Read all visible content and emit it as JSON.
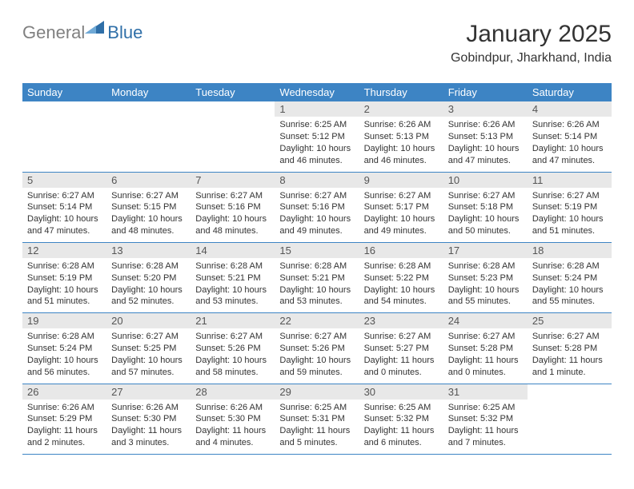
{
  "brand": {
    "text1": "General",
    "text2": "Blue"
  },
  "header": {
    "month_title": "January 2025",
    "location": "Gobindpur, Jharkhand, India"
  },
  "colors": {
    "header_bg": "#3d84c4",
    "header_text": "#ffffff",
    "daynum_bg": "#e8e8e8",
    "daynum_text": "#555555",
    "body_text": "#333333",
    "rule": "#3d84c4",
    "logo_gray": "#808080",
    "logo_blue": "#2f6fa8",
    "page_bg": "#ffffff"
  },
  "typography": {
    "title_fontsize": 30,
    "location_fontsize": 16,
    "dayheader_fontsize": 13,
    "daynum_fontsize": 13,
    "body_fontsize": 11
  },
  "day_headers": [
    "Sunday",
    "Monday",
    "Tuesday",
    "Wednesday",
    "Thursday",
    "Friday",
    "Saturday"
  ],
  "weeks": [
    [
      {
        "n": "",
        "sr": "",
        "ss": "",
        "dl": ""
      },
      {
        "n": "",
        "sr": "",
        "ss": "",
        "dl": ""
      },
      {
        "n": "",
        "sr": "",
        "ss": "",
        "dl": ""
      },
      {
        "n": "1",
        "sr": "Sunrise: 6:25 AM",
        "ss": "Sunset: 5:12 PM",
        "dl": "Daylight: 10 hours and 46 minutes."
      },
      {
        "n": "2",
        "sr": "Sunrise: 6:26 AM",
        "ss": "Sunset: 5:13 PM",
        "dl": "Daylight: 10 hours and 46 minutes."
      },
      {
        "n": "3",
        "sr": "Sunrise: 6:26 AM",
        "ss": "Sunset: 5:13 PM",
        "dl": "Daylight: 10 hours and 47 minutes."
      },
      {
        "n": "4",
        "sr": "Sunrise: 6:26 AM",
        "ss": "Sunset: 5:14 PM",
        "dl": "Daylight: 10 hours and 47 minutes."
      }
    ],
    [
      {
        "n": "5",
        "sr": "Sunrise: 6:27 AM",
        "ss": "Sunset: 5:14 PM",
        "dl": "Daylight: 10 hours and 47 minutes."
      },
      {
        "n": "6",
        "sr": "Sunrise: 6:27 AM",
        "ss": "Sunset: 5:15 PM",
        "dl": "Daylight: 10 hours and 48 minutes."
      },
      {
        "n": "7",
        "sr": "Sunrise: 6:27 AM",
        "ss": "Sunset: 5:16 PM",
        "dl": "Daylight: 10 hours and 48 minutes."
      },
      {
        "n": "8",
        "sr": "Sunrise: 6:27 AM",
        "ss": "Sunset: 5:16 PM",
        "dl": "Daylight: 10 hours and 49 minutes."
      },
      {
        "n": "9",
        "sr": "Sunrise: 6:27 AM",
        "ss": "Sunset: 5:17 PM",
        "dl": "Daylight: 10 hours and 49 minutes."
      },
      {
        "n": "10",
        "sr": "Sunrise: 6:27 AM",
        "ss": "Sunset: 5:18 PM",
        "dl": "Daylight: 10 hours and 50 minutes."
      },
      {
        "n": "11",
        "sr": "Sunrise: 6:27 AM",
        "ss": "Sunset: 5:19 PM",
        "dl": "Daylight: 10 hours and 51 minutes."
      }
    ],
    [
      {
        "n": "12",
        "sr": "Sunrise: 6:28 AM",
        "ss": "Sunset: 5:19 PM",
        "dl": "Daylight: 10 hours and 51 minutes."
      },
      {
        "n": "13",
        "sr": "Sunrise: 6:28 AM",
        "ss": "Sunset: 5:20 PM",
        "dl": "Daylight: 10 hours and 52 minutes."
      },
      {
        "n": "14",
        "sr": "Sunrise: 6:28 AM",
        "ss": "Sunset: 5:21 PM",
        "dl": "Daylight: 10 hours and 53 minutes."
      },
      {
        "n": "15",
        "sr": "Sunrise: 6:28 AM",
        "ss": "Sunset: 5:21 PM",
        "dl": "Daylight: 10 hours and 53 minutes."
      },
      {
        "n": "16",
        "sr": "Sunrise: 6:28 AM",
        "ss": "Sunset: 5:22 PM",
        "dl": "Daylight: 10 hours and 54 minutes."
      },
      {
        "n": "17",
        "sr": "Sunrise: 6:28 AM",
        "ss": "Sunset: 5:23 PM",
        "dl": "Daylight: 10 hours and 55 minutes."
      },
      {
        "n": "18",
        "sr": "Sunrise: 6:28 AM",
        "ss": "Sunset: 5:24 PM",
        "dl": "Daylight: 10 hours and 55 minutes."
      }
    ],
    [
      {
        "n": "19",
        "sr": "Sunrise: 6:28 AM",
        "ss": "Sunset: 5:24 PM",
        "dl": "Daylight: 10 hours and 56 minutes."
      },
      {
        "n": "20",
        "sr": "Sunrise: 6:27 AM",
        "ss": "Sunset: 5:25 PM",
        "dl": "Daylight: 10 hours and 57 minutes."
      },
      {
        "n": "21",
        "sr": "Sunrise: 6:27 AM",
        "ss": "Sunset: 5:26 PM",
        "dl": "Daylight: 10 hours and 58 minutes."
      },
      {
        "n": "22",
        "sr": "Sunrise: 6:27 AM",
        "ss": "Sunset: 5:26 PM",
        "dl": "Daylight: 10 hours and 59 minutes."
      },
      {
        "n": "23",
        "sr": "Sunrise: 6:27 AM",
        "ss": "Sunset: 5:27 PM",
        "dl": "Daylight: 11 hours and 0 minutes."
      },
      {
        "n": "24",
        "sr": "Sunrise: 6:27 AM",
        "ss": "Sunset: 5:28 PM",
        "dl": "Daylight: 11 hours and 0 minutes."
      },
      {
        "n": "25",
        "sr": "Sunrise: 6:27 AM",
        "ss": "Sunset: 5:28 PM",
        "dl": "Daylight: 11 hours and 1 minute."
      }
    ],
    [
      {
        "n": "26",
        "sr": "Sunrise: 6:26 AM",
        "ss": "Sunset: 5:29 PM",
        "dl": "Daylight: 11 hours and 2 minutes."
      },
      {
        "n": "27",
        "sr": "Sunrise: 6:26 AM",
        "ss": "Sunset: 5:30 PM",
        "dl": "Daylight: 11 hours and 3 minutes."
      },
      {
        "n": "28",
        "sr": "Sunrise: 6:26 AM",
        "ss": "Sunset: 5:30 PM",
        "dl": "Daylight: 11 hours and 4 minutes."
      },
      {
        "n": "29",
        "sr": "Sunrise: 6:25 AM",
        "ss": "Sunset: 5:31 PM",
        "dl": "Daylight: 11 hours and 5 minutes."
      },
      {
        "n": "30",
        "sr": "Sunrise: 6:25 AM",
        "ss": "Sunset: 5:32 PM",
        "dl": "Daylight: 11 hours and 6 minutes."
      },
      {
        "n": "31",
        "sr": "Sunrise: 6:25 AM",
        "ss": "Sunset: 5:32 PM",
        "dl": "Daylight: 11 hours and 7 minutes."
      },
      {
        "n": "",
        "sr": "",
        "ss": "",
        "dl": ""
      }
    ]
  ]
}
